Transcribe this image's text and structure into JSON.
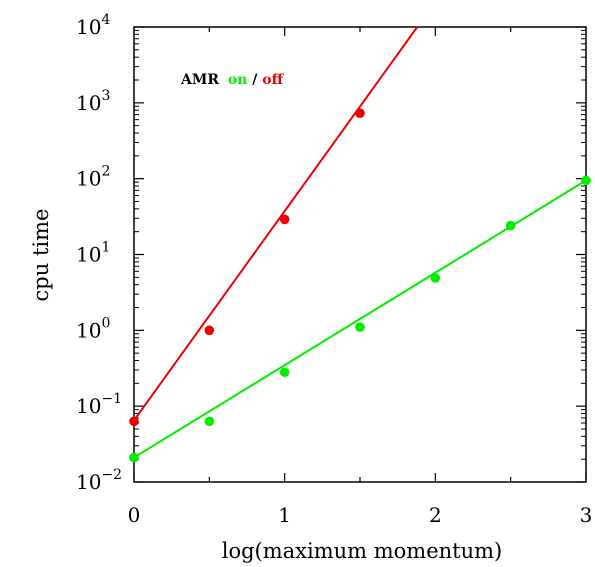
{
  "chart_data": {
    "type": "scatter",
    "xlabel": "log(maximum momentum)",
    "ylabel": "cpu time",
    "xlim": [
      0,
      3
    ],
    "ylim": [
      0.01,
      10000
    ],
    "yscale": "log",
    "x_ticks": [
      "0",
      "1",
      "2",
      "3"
    ],
    "y_ticks": [
      {
        "base": "10",
        "exp": "4",
        "value": 10000
      },
      {
        "base": "10",
        "exp": "3",
        "value": 1000
      },
      {
        "base": "10",
        "exp": "2",
        "value": 100
      },
      {
        "base": "10",
        "exp": "1",
        "value": 10
      },
      {
        "base": "10",
        "exp": "0",
        "value": 1
      },
      {
        "base": "10",
        "exp": "−1",
        "value": 0.1
      },
      {
        "base": "10",
        "exp": "−2",
        "value": 0.01
      }
    ],
    "legend": {
      "prefix": "AMR",
      "on": "on",
      "sep": "/",
      "off": "off",
      "placement": "top-left"
    },
    "series": [
      {
        "key": "on",
        "color": "#00ee00",
        "points": [
          [
            0,
            0.021
          ],
          [
            0.5,
            0.063
          ],
          [
            1,
            0.28
          ],
          [
            1.5,
            1.1
          ],
          [
            2,
            4.9
          ],
          [
            2.5,
            24
          ],
          [
            3,
            95
          ]
        ],
        "fit": [
          [
            0,
            0.021
          ],
          [
            3,
            95
          ]
        ]
      },
      {
        "key": "off",
        "color": "#ee0000",
        "points": [
          [
            0,
            0.063
          ],
          [
            0.5,
            1.0
          ],
          [
            1,
            29
          ],
          [
            1.5,
            730
          ]
        ],
        "fit": [
          [
            0,
            0.065
          ],
          [
            1.88,
            10000
          ]
        ]
      }
    ]
  }
}
